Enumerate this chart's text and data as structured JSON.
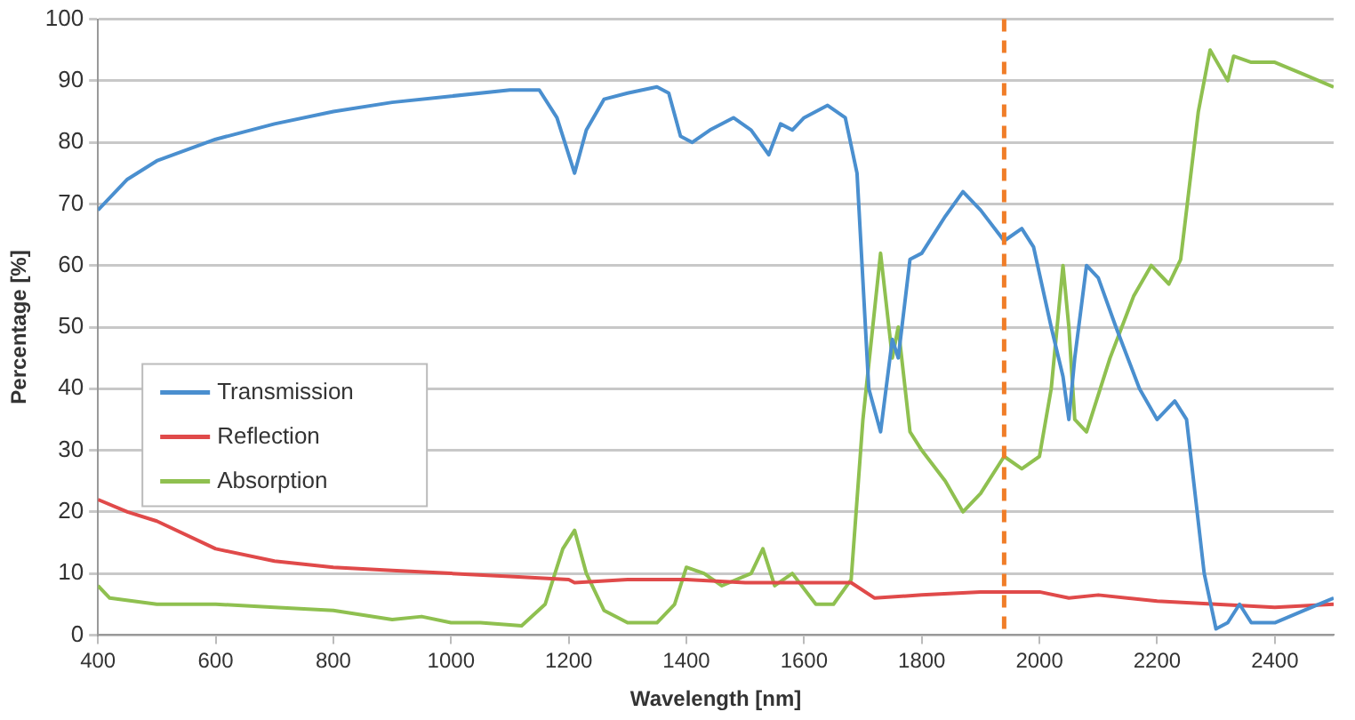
{
  "chart_data": {
    "type": "line",
    "xlabel": "Wavelength [nm]",
    "ylabel": "Percentage [%]",
    "xlim": [
      400,
      2500
    ],
    "xticks": [
      400,
      600,
      800,
      1000,
      1200,
      1400,
      1600,
      1800,
      2000,
      2200,
      2400
    ],
    "ylim": [
      0,
      100
    ],
    "yticks": [
      0,
      10,
      20,
      30,
      40,
      50,
      60,
      70,
      80,
      90,
      100
    ],
    "grid": "y",
    "legend": "left",
    "marker": "none",
    "series": [
      {
        "name": "Transmission",
        "color": "#4a8fcf",
        "x": [
          400,
          450,
          500,
          600,
          700,
          800,
          900,
          1000,
          1100,
          1150,
          1180,
          1210,
          1230,
          1260,
          1300,
          1350,
          1370,
          1390,
          1410,
          1440,
          1480,
          1510,
          1540,
          1560,
          1580,
          1600,
          1640,
          1670,
          1690,
          1710,
          1730,
          1750,
          1760,
          1780,
          1800,
          1840,
          1870,
          1900,
          1940,
          1970,
          1990,
          2020,
          2040,
          2050,
          2060,
          2080,
          2100,
          2130,
          2170,
          2200,
          2230,
          2250,
          2280,
          2300,
          2320,
          2340,
          2360,
          2400,
          2450,
          2500
        ],
        "values": [
          69,
          74,
          77,
          80.5,
          83,
          85,
          86.5,
          87.5,
          88.5,
          88.5,
          84,
          75,
          82,
          87,
          88,
          89,
          88,
          81,
          80,
          82,
          84,
          82,
          78,
          83,
          82,
          84,
          86,
          84,
          75,
          40,
          33,
          48,
          45,
          61,
          62,
          68,
          72,
          69,
          64,
          66,
          63,
          50,
          42,
          35,
          45,
          60,
          58,
          50,
          40,
          35,
          38,
          35,
          10,
          1,
          2,
          5,
          2,
          2,
          4,
          6
        ]
      },
      {
        "name": "Reflection",
        "color": "#e04a4a",
        "x": [
          400,
          450,
          500,
          600,
          700,
          800,
          900,
          1000,
          1100,
          1200,
          1210,
          1300,
          1400,
          1500,
          1600,
          1680,
          1720,
          1800,
          1900,
          2000,
          2050,
          2100,
          2200,
          2300,
          2400,
          2500
        ],
        "values": [
          22,
          20,
          18.5,
          14,
          12,
          11,
          10.5,
          10,
          9.5,
          9,
          8.5,
          9,
          9,
          8.5,
          8.5,
          8.5,
          6,
          6.5,
          7,
          7,
          6,
          6.5,
          5.5,
          5,
          4.5,
          5
        ]
      },
      {
        "name": "Absorption",
        "color": "#8fc050",
        "x": [
          400,
          420,
          500,
          600,
          700,
          800,
          900,
          950,
          1000,
          1050,
          1120,
          1160,
          1190,
          1210,
          1230,
          1260,
          1300,
          1350,
          1380,
          1400,
          1430,
          1460,
          1510,
          1530,
          1550,
          1580,
          1620,
          1650,
          1680,
          1700,
          1730,
          1750,
          1760,
          1780,
          1800,
          1840,
          1870,
          1900,
          1940,
          1970,
          2000,
          2020,
          2040,
          2050,
          2060,
          2080,
          2120,
          2160,
          2190,
          2220,
          2240,
          2270,
          2290,
          2320,
          2330,
          2360,
          2400,
          2450,
          2500
        ],
        "values": [
          8,
          6,
          5,
          5,
          4.5,
          4,
          2.5,
          3,
          2,
          2,
          1.5,
          5,
          14,
          17,
          10,
          4,
          2,
          2,
          5,
          11,
          10,
          8,
          10,
          14,
          8,
          10,
          5,
          5,
          9,
          35,
          62,
          45,
          50,
          33,
          30,
          25,
          20,
          23,
          29,
          27,
          29,
          40,
          60,
          50,
          35,
          33,
          45,
          55,
          60,
          57,
          61,
          85,
          95,
          90,
          94,
          93,
          93,
          91,
          89
        ]
      }
    ],
    "ref_lines": [
      {
        "axis": "x",
        "value": 1940,
        "color": "#f07d28",
        "line_style": "dashed"
      }
    ]
  }
}
